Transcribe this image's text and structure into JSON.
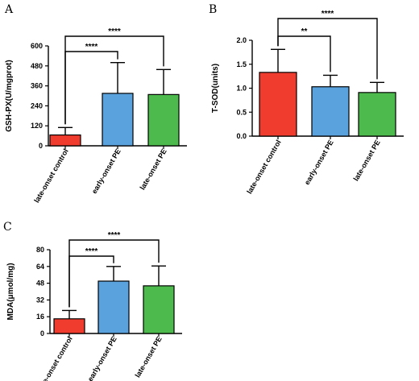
{
  "chart_data": [
    {
      "type": "bar",
      "panel_label": "A",
      "ylabel": "GSH-PX(U/mgprot)",
      "ylim": [
        0,
        600
      ],
      "yticks": [
        0,
        120,
        240,
        360,
        480,
        600
      ],
      "categories": [
        "late-onset control",
        "early-onset PE",
        "late-onset PE"
      ],
      "values": [
        65,
        315,
        308
      ],
      "errors": [
        45,
        185,
        150
      ],
      "colors": [
        "#f03c2e",
        "#5aa2de",
        "#4cba4c"
      ],
      "significance": [
        {
          "from": 0,
          "to": 1,
          "label": "****"
        },
        {
          "from": 0,
          "to": 2,
          "label": "****"
        }
      ]
    },
    {
      "type": "bar",
      "panel_label": "B",
      "ylabel": "T-SOD(units)",
      "ylim": [
        0,
        2.0
      ],
      "yticks": [
        "0.0",
        "0.5",
        "1.0",
        "1.5",
        "2.0"
      ],
      "categories": [
        "late-onset control",
        "early-onset PE",
        "late-onset PE"
      ],
      "values": [
        1.33,
        1.03,
        0.91
      ],
      "errors": [
        0.48,
        0.24,
        0.21
      ],
      "colors": [
        "#f03c2e",
        "#5aa2de",
        "#4cba4c"
      ],
      "significance": [
        {
          "from": 0,
          "to": 1,
          "label": "**"
        },
        {
          "from": 0,
          "to": 2,
          "label": "****"
        }
      ]
    },
    {
      "type": "bar",
      "panel_label": "C",
      "ylabel": "MDA(μmol/mg)",
      "ylim": [
        0,
        80
      ],
      "yticks": [
        0,
        16,
        32,
        48,
        64,
        80
      ],
      "categories": [
        "late-onset control",
        "early-onset PE",
        "late-onset PE"
      ],
      "values": [
        14,
        50,
        45.5
      ],
      "errors": [
        8,
        14,
        19
      ],
      "colors": [
        "#f03c2e",
        "#5aa2de",
        "#4cba4c"
      ],
      "significance": [
        {
          "from": 0,
          "to": 1,
          "label": "****"
        },
        {
          "from": 0,
          "to": 2,
          "label": "****"
        }
      ]
    }
  ]
}
